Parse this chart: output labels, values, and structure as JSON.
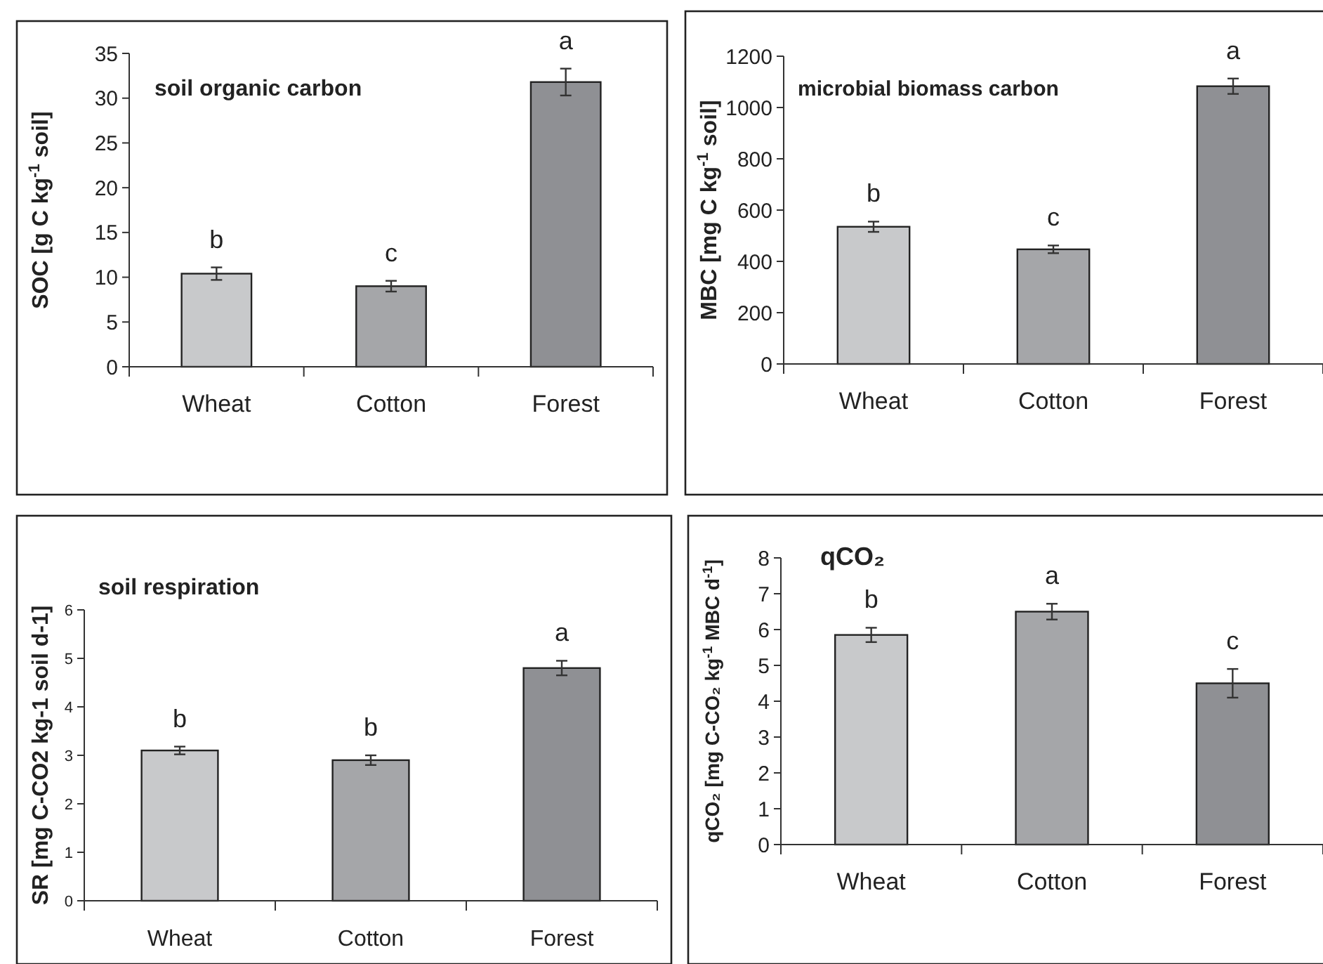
{
  "chart_data": [
    {
      "type": "bar",
      "title": "soil organic carbon",
      "ylabel": "SOC [g C kg$^{-1}$ soil]",
      "categories": [
        "Wheat",
        "Cotton",
        "Forest"
      ],
      "values": [
        10.4,
        9.0,
        31.8
      ],
      "errors": [
        0.7,
        0.6,
        1.5
      ],
      "colors": [
        "#c8c9cb",
        "#a5a6a9",
        "#8f9094"
      ],
      "ylim": [
        0,
        35
      ],
      "yticks": [
        0,
        5,
        10,
        15,
        20,
        25,
        30,
        35
      ],
      "grid": false,
      "annotations": [
        "b",
        "c",
        "a"
      ]
    },
    {
      "type": "bar",
      "title": "microbial biomass carbon",
      "ylabel": "MBC [mg C kg$^{-1}$ soil]",
      "categories": [
        "Wheat",
        "Cotton",
        "Forest"
      ],
      "values": [
        535,
        447,
        1083
      ],
      "errors": [
        20,
        15,
        30
      ],
      "colors": [
        "#c8c9cb",
        "#a5a6a9",
        "#8f9094"
      ],
      "ylim": [
        0,
        1200
      ],
      "yticks": [
        0,
        200,
        400,
        600,
        800,
        1000,
        1200
      ],
      "grid": false,
      "annotations": [
        "b",
        "c",
        "a"
      ]
    },
    {
      "type": "bar",
      "title": "soil respiration",
      "ylabel": "SR [mg C-CO2 kg-1 soil d-1]",
      "categories": [
        "Wheat",
        "Cotton",
        "Forest"
      ],
      "values": [
        3.1,
        2.9,
        4.8
      ],
      "errors": [
        0.08,
        0.1,
        0.15
      ],
      "colors": [
        "#c8c9cb",
        "#a5a6a9",
        "#8f9094"
      ],
      "ylim": [
        0,
        6
      ],
      "yticks": [
        0,
        1,
        2,
        3,
        4,
        5,
        6
      ],
      "grid": false,
      "annotations": [
        "b",
        "b",
        "a"
      ]
    },
    {
      "type": "bar",
      "title": "qCO₂",
      "ylabel": "qCO₂ [mg C-CO₂ kg$^{-1}$ MBC d$^{-1}$]",
      "categories": [
        "Wheat",
        "Cotton",
        "Forest"
      ],
      "values": [
        5.85,
        6.5,
        4.5
      ],
      "errors": [
        0.2,
        0.22,
        0.4
      ],
      "colors": [
        "#c8c9cb",
        "#a5a6a9",
        "#8f9094"
      ],
      "ylim": [
        0,
        8
      ],
      "yticks": [
        0,
        1,
        2,
        3,
        4,
        5,
        6,
        7,
        8
      ],
      "grid": false,
      "annotations": [
        "b",
        "a",
        "c"
      ]
    }
  ]
}
